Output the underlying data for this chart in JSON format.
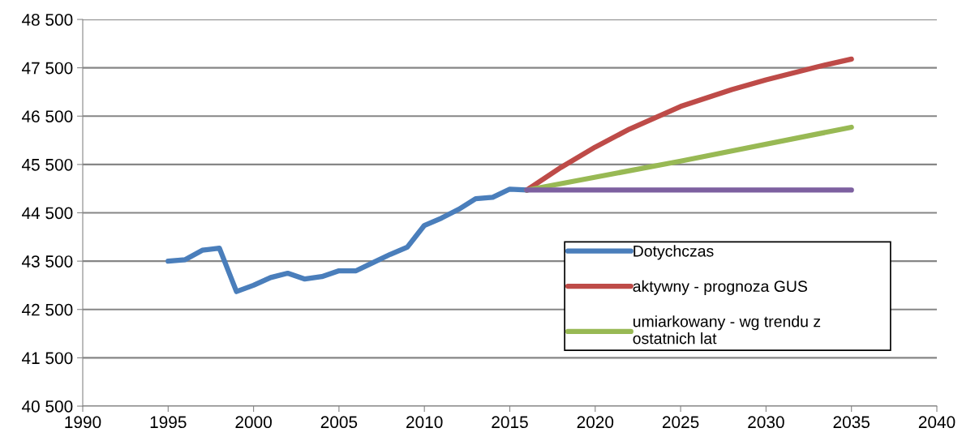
{
  "chart_data": {
    "type": "line",
    "xlim": [
      1990,
      2040
    ],
    "xticks": [
      1990,
      1995,
      2000,
      2005,
      2010,
      2015,
      2020,
      2025,
      2030,
      2035,
      2040
    ],
    "ylim": [
      40500,
      48500
    ],
    "yticks": [
      {
        "value": 40500,
        "label": "40 500"
      },
      {
        "value": 41500,
        "label": "41 500"
      },
      {
        "value": 42500,
        "label": "42 500"
      },
      {
        "value": 43500,
        "label": "43 500"
      },
      {
        "value": 44500,
        "label": "44 500"
      },
      {
        "value": 45500,
        "label": "45 500"
      },
      {
        "value": 46500,
        "label": "46 500"
      },
      {
        "value": 47500,
        "label": "47 500"
      },
      {
        "value": 48500,
        "label": "48 500"
      }
    ],
    "grid": "y",
    "legend": "bottom right",
    "marker": "none",
    "line_style": "solid",
    "series": [
      {
        "name": "Dotychczas",
        "color": "#4a7ebb",
        "x": [
          1995,
          1996,
          1997,
          1998,
          1999,
          2000,
          2001,
          2002,
          2003,
          2004,
          2005,
          2006,
          2007,
          2008,
          2009,
          2010,
          2011,
          2012,
          2013,
          2014,
          2015,
          2016
        ],
        "values": [
          43500,
          43530,
          43725,
          43770,
          42870,
          43000,
          43160,
          43250,
          43130,
          43180,
          43300,
          43300,
          43470,
          43640,
          43790,
          44240,
          44390,
          44570,
          44790,
          44820,
          44990,
          44970
        ]
      },
      {
        "name": "aktywny - prognoza GUS",
        "color": "#be4b48",
        "x": [
          2016,
          2018,
          2020,
          2022,
          2025,
          2028,
          2030,
          2033,
          2035
        ],
        "values": [
          44970,
          45440,
          45860,
          46230,
          46700,
          47050,
          47250,
          47520,
          47680
        ]
      },
      {
        "name": "umiarkowany - wg trendu z\nostatnich lat",
        "color": "#98b954",
        "x": [
          2016,
          2025,
          2035
        ],
        "values": [
          44970,
          45570,
          46270
        ]
      },
      {
        "color": "#7d60a0",
        "x": [
          2016,
          2035
        ],
        "values": [
          44970,
          44970
        ]
      }
    ]
  }
}
